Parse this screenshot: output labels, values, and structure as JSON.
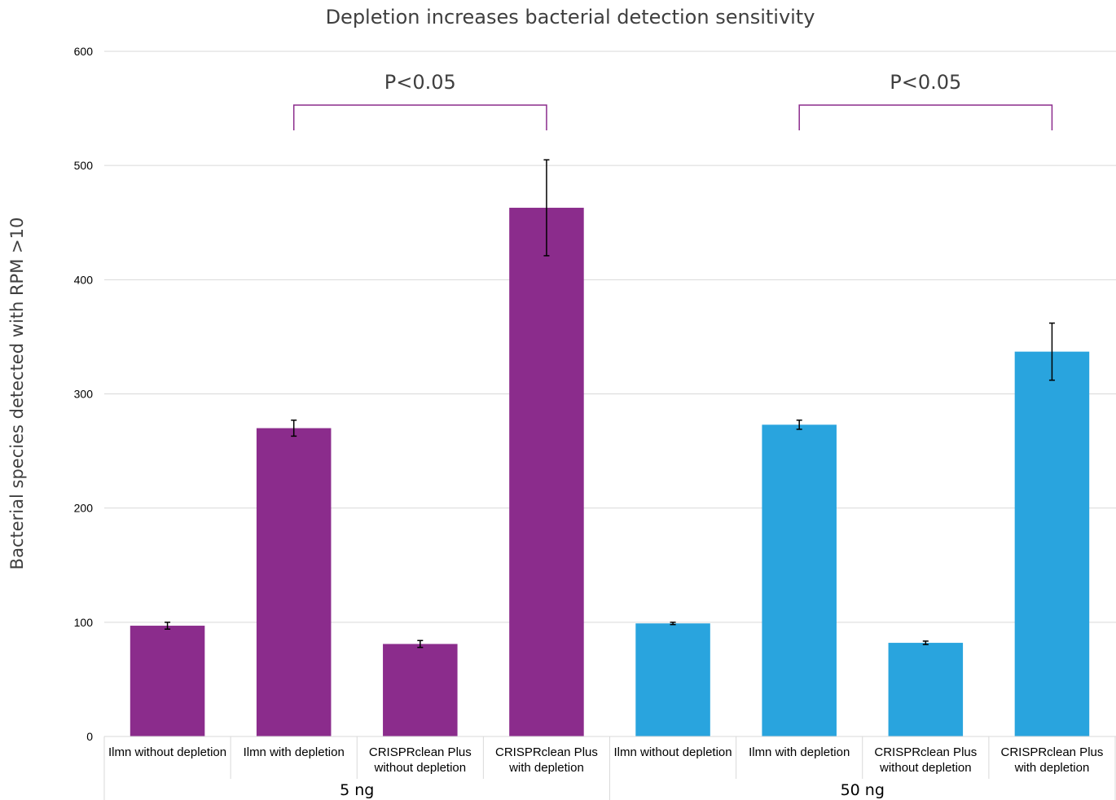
{
  "chart_data": {
    "type": "bar",
    "title": "Depletion increases bacterial detection sensitivity",
    "ylabel": "Bacterial species detected with RPM >10",
    "ylim": [
      0,
      600
    ],
    "yticks": [
      0,
      100,
      200,
      300,
      400,
      500,
      600
    ],
    "grid": true,
    "groups": [
      {
        "label": "5 ng",
        "color": "#8b2c8c",
        "bars": [
          {
            "label": [
              "Ilmn without depletion"
            ],
            "value": 97,
            "error": 3
          },
          {
            "label": [
              "Ilmn with depletion"
            ],
            "value": 270,
            "error": 7
          },
          {
            "label": [
              "CRISPRclean Plus",
              "without depletion"
            ],
            "value": 81,
            "error": 3
          },
          {
            "label": [
              "CRISPRclean Plus",
              "with depletion"
            ],
            "value": 463,
            "error": 42
          }
        ]
      },
      {
        "label": "50 ng",
        "color": "#29a4de",
        "bars": [
          {
            "label": [
              "Ilmn without depletion"
            ],
            "value": 99,
            "error": 1
          },
          {
            "label": [
              "Ilmn with depletion"
            ],
            "value": 273,
            "error": 4
          },
          {
            "label": [
              "CRISPRclean Plus",
              "without depletion"
            ],
            "value": 82,
            "error": 1.5
          },
          {
            "label": [
              "CRISPRclean Plus",
              "with depletion"
            ],
            "value": 337,
            "error": 25
          }
        ]
      }
    ],
    "annotations": [
      {
        "text": "P<0.05",
        "group": 0,
        "from_bar": 1,
        "to_bar": 3,
        "color": "#8b2c8c"
      },
      {
        "text": "P<0.05",
        "group": 1,
        "from_bar": 1,
        "to_bar": 3,
        "color": "#8b2c8c"
      }
    ]
  }
}
